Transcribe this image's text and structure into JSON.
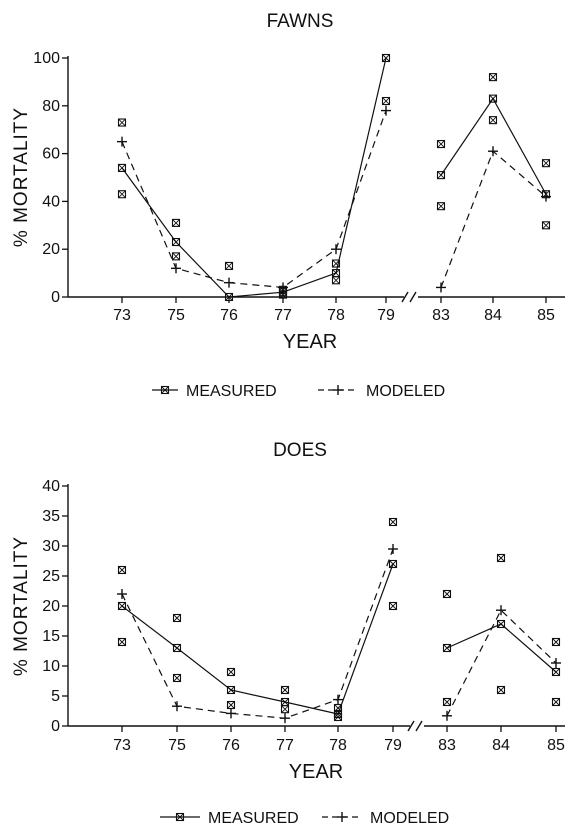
{
  "chart_data": [
    {
      "type": "line",
      "title": "FAWNS",
      "xlabel": "YEAR",
      "ylabel": "% MORTALITY",
      "categories": [
        "73",
        "75",
        "76",
        "77",
        "78",
        "79",
        "83",
        "84",
        "85"
      ],
      "axis_break_between": [
        "79",
        "83"
      ],
      "ylim": [
        0,
        100
      ],
      "yticks": [
        "0",
        "20",
        "40",
        "60",
        "80",
        "100"
      ],
      "series": [
        {
          "name": "MEASURED",
          "style": "solid",
          "marker": "square-x",
          "values": [
            54,
            23,
            0,
            2,
            10,
            100,
            51,
            83,
            43
          ]
        },
        {
          "name": "MODELED",
          "style": "dashed",
          "marker": "cross",
          "values": [
            65,
            12,
            6,
            4,
            20,
            78,
            4,
            61,
            42
          ]
        }
      ],
      "extra_points": [
        {
          "category": "73",
          "values": [
            73,
            43
          ]
        },
        {
          "category": "75",
          "values": [
            31,
            17
          ]
        },
        {
          "category": "76",
          "values": [
            13
          ]
        },
        {
          "category": "77",
          "values": [
            3,
            1
          ]
        },
        {
          "category": "78",
          "values": [
            14,
            7
          ]
        },
        {
          "category": "79",
          "values": [
            82
          ]
        },
        {
          "category": "83",
          "values": [
            64,
            38
          ]
        },
        {
          "category": "84",
          "values": [
            92,
            74
          ]
        },
        {
          "category": "85",
          "values": [
            56,
            30
          ]
        }
      ],
      "grid": false,
      "legend": "bottom-center"
    },
    {
      "type": "line",
      "title": "DOES",
      "xlabel": "YEAR",
      "ylabel": "% MORTALITY",
      "categories": [
        "73",
        "75",
        "76",
        "77",
        "78",
        "79",
        "83",
        "84",
        "85"
      ],
      "axis_break_between": [
        "79",
        "83"
      ],
      "ylim": [
        0,
        40
      ],
      "yticks": [
        "0",
        "5",
        "10",
        "15",
        "20",
        "25",
        "30",
        "35",
        "40"
      ],
      "series": [
        {
          "name": "MEASURED",
          "style": "solid",
          "marker": "square-x",
          "values": [
            20,
            13,
            6,
            4,
            2,
            27,
            13,
            17,
            9
          ]
        },
        {
          "name": "MODELED",
          "style": "dashed",
          "marker": "cross",
          "values": [
            22,
            3.3,
            2.1,
            1.3,
            4.4,
            29.5,
            1.7,
            19.3,
            10.5
          ]
        }
      ],
      "extra_points": [
        {
          "category": "73",
          "values": [
            26,
            14
          ]
        },
        {
          "category": "75",
          "values": [
            18,
            8
          ]
        },
        {
          "category": "76",
          "values": [
            9,
            3.5
          ]
        },
        {
          "category": "77",
          "values": [
            6,
            2.8
          ]
        },
        {
          "category": "78",
          "values": [
            3,
            1.5
          ]
        },
        {
          "category": "79",
          "values": [
            34,
            20
          ]
        },
        {
          "category": "83",
          "values": [
            22,
            4
          ]
        },
        {
          "category": "84",
          "values": [
            28,
            6
          ]
        },
        {
          "category": "85",
          "values": [
            14,
            4
          ]
        }
      ],
      "grid": false,
      "legend": "bottom-center"
    }
  ]
}
